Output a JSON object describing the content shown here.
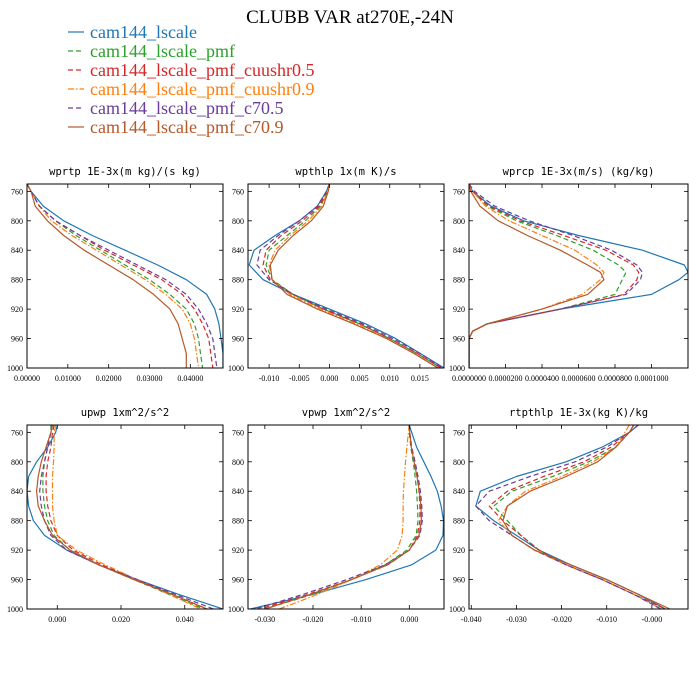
{
  "figure": {
    "title": "CLUBB VAR at270E,-24N"
  },
  "legend": [
    {
      "label": "cam144_lscale",
      "color": "#1f77b4",
      "dash": "solid"
    },
    {
      "label": "cam144_lscale_pmf",
      "color": "#2ca02c",
      "dash": "dash"
    },
    {
      "label": "cam144_lscale_pmf_cuushr0.5",
      "color": "#d62728",
      "dash": "dash"
    },
    {
      "label": "cam144_lscale_pmf_cuushr0.9",
      "color": "#ff7f0e",
      "dash": "dashdot"
    },
    {
      "label": "cam144_lscale_pmf_c70.5",
      "color": "#6a3d9a",
      "dash": "dash"
    },
    {
      "label": "cam144_lscale_pmf_c70.9",
      "color": "#b5582a",
      "dash": "solid"
    }
  ],
  "chart_data": [
    {
      "type": "line",
      "title": "wprtp  1E-3x(m kg)/(s kg)",
      "xlim": [
        0.0,
        0.048
      ],
      "ylim": [
        1000,
        750
      ],
      "xticks": [
        0.0,
        0.01,
        0.02,
        0.03,
        0.04
      ],
      "xtick_labels": [
        "0.00000",
        "0.01000",
        "0.02000",
        "0.03000",
        "0.04000"
      ],
      "yticks": [
        760,
        800,
        840,
        880,
        920,
        960,
        1000
      ],
      "y": [
        750,
        760,
        780,
        800,
        820,
        840,
        860,
        880,
        900,
        920,
        940,
        960,
        980,
        1000
      ],
      "series": [
        {
          "name": "cam144_lscale",
          "values": [
            0.0,
            0.001,
            0.004,
            0.009,
            0.016,
            0.024,
            0.032,
            0.039,
            0.044,
            0.046,
            0.047,
            0.0475,
            0.048,
            0.048
          ]
        },
        {
          "name": "cam144_lscale_pmf",
          "values": [
            0.0,
            0.001,
            0.003,
            0.007,
            0.012,
            0.018,
            0.024,
            0.03,
            0.035,
            0.039,
            0.041,
            0.042,
            0.0425,
            0.043
          ]
        },
        {
          "name": "cam144_lscale_pmf_cuushr0.5",
          "values": [
            0.0,
            0.001,
            0.003,
            0.007,
            0.013,
            0.019,
            0.026,
            0.033,
            0.038,
            0.041,
            0.043,
            0.0445,
            0.045,
            0.0455
          ]
        },
        {
          "name": "cam144_lscale_pmf_cuushr0.9",
          "values": [
            0.0,
            0.001,
            0.003,
            0.006,
            0.011,
            0.017,
            0.023,
            0.029,
            0.034,
            0.038,
            0.04,
            0.041,
            0.0415,
            0.042
          ]
        },
        {
          "name": "cam144_lscale_pmf_c70.5",
          "values": [
            0.0,
            0.001,
            0.003,
            0.007,
            0.013,
            0.02,
            0.027,
            0.034,
            0.039,
            0.042,
            0.044,
            0.0455,
            0.046,
            0.0465
          ]
        },
        {
          "name": "cam144_lscale_pmf_c70.9",
          "values": [
            0.0,
            0.001,
            0.002,
            0.005,
            0.009,
            0.014,
            0.02,
            0.026,
            0.031,
            0.035,
            0.037,
            0.038,
            0.039,
            0.039
          ]
        }
      ]
    },
    {
      "type": "line",
      "title": "wpthlp  1x(m K)/s",
      "xlim": [
        -0.0135,
        0.019
      ],
      "ylim": [
        1000,
        750
      ],
      "xticks": [
        -0.01,
        -0.005,
        0.0,
        0.005,
        0.01,
        0.015
      ],
      "xtick_labels": [
        "-0.010",
        "-0.005",
        "0.000",
        "0.005",
        "0.010",
        "0.015"
      ],
      "yticks": [
        760,
        800,
        840,
        880,
        920,
        960,
        1000
      ],
      "y": [
        750,
        760,
        780,
        800,
        820,
        840,
        860,
        880,
        900,
        920,
        940,
        960,
        980,
        1000
      ],
      "series": [
        {
          "name": "cam144_lscale",
          "values": [
            0.0,
            -0.0005,
            -0.002,
            -0.005,
            -0.009,
            -0.0125,
            -0.0133,
            -0.011,
            -0.006,
            0.0,
            0.006,
            0.011,
            0.015,
            0.019
          ]
        },
        {
          "name": "cam144_lscale_pmf",
          "values": [
            0.0,
            -0.0003,
            -0.0015,
            -0.004,
            -0.007,
            -0.01,
            -0.0105,
            -0.0095,
            -0.006,
            -0.001,
            0.005,
            0.01,
            0.0145,
            0.0185
          ]
        },
        {
          "name": "cam144_lscale_pmf_cuushr0.5",
          "values": [
            0.0,
            -0.0004,
            -0.0017,
            -0.0045,
            -0.008,
            -0.0105,
            -0.011,
            -0.0098,
            -0.006,
            -0.001,
            0.005,
            0.01,
            0.0145,
            0.0185
          ]
        },
        {
          "name": "cam144_lscale_pmf_cuushr0.9",
          "values": [
            0.0,
            -0.0003,
            -0.0013,
            -0.0035,
            -0.0065,
            -0.009,
            -0.01,
            -0.0095,
            -0.0065,
            -0.0015,
            0.0045,
            0.0095,
            0.014,
            0.018
          ]
        },
        {
          "name": "cam144_lscale_pmf_c70.5",
          "values": [
            0.0,
            -0.0005,
            -0.002,
            -0.005,
            -0.0085,
            -0.0115,
            -0.012,
            -0.01,
            -0.006,
            -0.0005,
            0.0055,
            0.0105,
            0.015,
            0.0188
          ]
        },
        {
          "name": "cam144_lscale_pmf_c70.9",
          "values": [
            0.0,
            -0.0002,
            -0.001,
            -0.003,
            -0.006,
            -0.0085,
            -0.0098,
            -0.0095,
            -0.007,
            -0.002,
            0.004,
            0.0095,
            0.014,
            0.018
          ]
        }
      ]
    },
    {
      "type": "line",
      "title": "wprcp  1E-3x(m/s) (kg/kg)",
      "xlim": [
        0.0,
        0.00012
      ],
      "ylim": [
        1000,
        750
      ],
      "xticks": [
        0.0,
        2e-05,
        4e-05,
        6e-05,
        8e-05,
        0.0001
      ],
      "xtick_labels": [
        "0.0000000",
        "0.0000200",
        "0.0000400",
        "0.0000600",
        "0.0000800",
        "0.0001000"
      ],
      "yticks": [
        760,
        800,
        840,
        880,
        920,
        960,
        1000
      ],
      "y": [
        750,
        760,
        780,
        800,
        820,
        840,
        860,
        870,
        880,
        900,
        920,
        940,
        950,
        960,
        1000
      ],
      "series": [
        {
          "name": "cam144_lscale",
          "values": [
            0.0,
            2e-06,
            1.2e-05,
            3e-05,
            6e-05,
            9.5e-05,
            0.000118,
            0.00012,
            0.000115,
            0.0001,
            5e-05,
            1e-05,
            2e-06,
            0.0,
            0.0
          ]
        },
        {
          "name": "cam144_lscale_pmf",
          "values": [
            0.0,
            2e-06,
            1e-05,
            2.6e-05,
            4.8e-05,
            6.8e-05,
            8.2e-05,
            8.6e-05,
            8.4e-05,
            8e-05,
            5e-05,
            1e-05,
            2e-06,
            0.0,
            0.0
          ]
        },
        {
          "name": "cam144_lscale_pmf_cuushr0.5",
          "values": [
            0.0,
            2e-06,
            1.1e-05,
            2.8e-05,
            5.2e-05,
            7.5e-05,
            9e-05,
            9.3e-05,
            9.2e-05,
            8.5e-05,
            5e-05,
            1e-05,
            2e-06,
            0.0,
            0.0
          ]
        },
        {
          "name": "cam144_lscale_pmf_cuushr0.9",
          "values": [
            0.0,
            2e-06,
            9e-06,
            2.2e-05,
            4e-05,
            5.8e-05,
            7e-05,
            7.4e-05,
            7.2e-05,
            6.2e-05,
            4e-05,
            1e-05,
            2e-06,
            0.0,
            0.0
          ]
        },
        {
          "name": "cam144_lscale_pmf_c70.5",
          "values": [
            0.0,
            3e-06,
            1.4e-05,
            3.3e-05,
            5.7e-05,
            7.8e-05,
            9.2e-05,
            9.5e-05,
            9.4e-05,
            8.6e-05,
            5e-05,
            1e-05,
            2e-06,
            0.0,
            0.0
          ]
        },
        {
          "name": "cam144_lscale_pmf_c70.9",
          "values": [
            0.0,
            1e-06,
            6e-06,
            1.6e-05,
            3.2e-05,
            5e-05,
            6.5e-05,
            7.2e-05,
            7.4e-05,
            6.5e-05,
            4e-05,
            1e-05,
            2e-06,
            0.0,
            0.0
          ]
        }
      ]
    },
    {
      "type": "line",
      "title": "upwp  1xm^2/s^2",
      "xlim": [
        -0.0095,
        0.052
      ],
      "ylim": [
        1000,
        750
      ],
      "xticks": [
        0.0,
        0.02,
        0.04
      ],
      "xtick_labels": [
        "0.000",
        "0.020",
        "0.040"
      ],
      "yticks": [
        760,
        800,
        840,
        880,
        920,
        960,
        1000
      ],
      "y": [
        750,
        760,
        780,
        800,
        820,
        840,
        860,
        880,
        900,
        920,
        940,
        960,
        980,
        1000
      ],
      "series": [
        {
          "name": "cam144_lscale",
          "values": [
            0.0,
            -0.0005,
            -0.003,
            -0.0065,
            -0.009,
            -0.0095,
            -0.009,
            -0.0075,
            -0.004,
            0.003,
            0.013,
            0.025,
            0.038,
            0.052
          ]
        },
        {
          "name": "cam144_lscale_pmf",
          "values": [
            -0.002,
            -0.002,
            -0.003,
            -0.004,
            -0.0045,
            -0.0045,
            -0.004,
            -0.003,
            -0.001,
            0.004,
            0.013,
            0.024,
            0.035,
            0.046
          ]
        },
        {
          "name": "cam144_lscale_pmf_cuushr0.5",
          "values": [
            -0.001,
            -0.0015,
            -0.002,
            -0.003,
            -0.0035,
            -0.0035,
            -0.003,
            -0.002,
            0.0,
            0.005,
            0.014,
            0.025,
            0.036,
            0.047
          ]
        },
        {
          "name": "cam144_lscale_pmf_cuushr0.9",
          "values": [
            -0.0005,
            -0.001,
            -0.001,
            -0.0012,
            -0.0015,
            -0.0015,
            -0.0015,
            -0.001,
            0.0,
            0.006,
            0.015,
            0.025,
            0.035,
            0.045
          ]
        },
        {
          "name": "cam144_lscale_pmf_c70.5",
          "values": [
            -0.0015,
            -0.002,
            -0.003,
            -0.004,
            -0.005,
            -0.0055,
            -0.005,
            -0.004,
            -0.002,
            0.003,
            0.013,
            0.025,
            0.037,
            0.049
          ]
        },
        {
          "name": "cam144_lscale_pmf_c70.9",
          "values": [
            -0.0015,
            -0.002,
            -0.0035,
            -0.005,
            -0.006,
            -0.0065,
            -0.006,
            -0.004,
            -0.0015,
            0.004,
            0.013,
            0.024,
            0.036,
            0.047
          ]
        }
      ]
    },
    {
      "type": "line",
      "title": "vpwp  1xm^2/s^2",
      "xlim": [
        -0.0335,
        0.0072
      ],
      "ylim": [
        1000,
        750
      ],
      "xticks": [
        -0.03,
        -0.02,
        -0.01,
        0.0
      ],
      "xtick_labels": [
        "-0.030",
        "-0.020",
        "-0.010",
        "0.000"
      ],
      "yticks": [
        760,
        800,
        840,
        880,
        920,
        960,
        1000
      ],
      "y": [
        750,
        760,
        780,
        800,
        820,
        840,
        860,
        880,
        900,
        920,
        940,
        960,
        980,
        1000
      ],
      "series": [
        {
          "name": "cam144_lscale",
          "values": [
            0.0,
            0.0005,
            0.0015,
            0.003,
            0.0045,
            0.0058,
            0.0066,
            0.0071,
            0.007,
            0.0055,
            0.0005,
            -0.009,
            -0.02,
            -0.033
          ]
        },
        {
          "name": "cam144_lscale_pmf",
          "values": [
            0.0,
            0.0,
            0.0003,
            0.0008,
            0.0012,
            0.0015,
            0.0017,
            0.0018,
            0.0014,
            -0.0005,
            -0.005,
            -0.012,
            -0.02,
            -0.03
          ]
        },
        {
          "name": "cam144_lscale_pmf_cuushr0.5",
          "values": [
            0.0,
            0.0,
            0.0004,
            0.001,
            0.0016,
            0.002,
            0.0022,
            0.0022,
            0.0017,
            0.0,
            -0.0045,
            -0.012,
            -0.021,
            -0.031
          ]
        },
        {
          "name": "cam144_lscale_pmf_cuushr0.9",
          "values": [
            0.0,
            -0.0002,
            -0.0005,
            -0.0008,
            -0.001,
            -0.0012,
            -0.0013,
            -0.0013,
            -0.0015,
            -0.0025,
            -0.006,
            -0.012,
            -0.019,
            -0.027
          ]
        },
        {
          "name": "cam144_lscale_pmf_c70.5",
          "values": [
            0.0,
            0.0001,
            0.0005,
            0.0012,
            0.0018,
            0.0023,
            0.0026,
            0.0027,
            0.0022,
            0.0,
            -0.005,
            -0.013,
            -0.022,
            -0.032
          ]
        },
        {
          "name": "cam144_lscale_pmf_c70.9",
          "values": [
            0.0,
            0.0001,
            0.0004,
            0.001,
            0.0016,
            0.0021,
            0.0024,
            0.0025,
            0.002,
            0.0,
            -0.0045,
            -0.012,
            -0.0205,
            -0.03
          ]
        }
      ]
    },
    {
      "type": "line",
      "title": "rtpthlp  1E-3x(kg K)/kg",
      "xlim": [
        -0.0405,
        0.008
      ],
      "ylim": [
        1000,
        750
      ],
      "xticks": [
        -0.04,
        -0.03,
        -0.02,
        -0.01,
        0.0
      ],
      "xtick_labels": [
        "-0.040",
        "-0.030",
        "-0.020",
        "-0.010",
        "-0.000"
      ],
      "yticks": [
        760,
        800,
        840,
        880,
        920,
        960,
        1000
      ],
      "y": [
        750,
        760,
        780,
        800,
        820,
        840,
        860,
        880,
        900,
        920,
        940,
        960,
        980,
        1000
      ],
      "series": [
        {
          "name": "cam144_lscale",
          "values": [
            -0.003,
            -0.005,
            -0.011,
            -0.019,
            -0.03,
            -0.038,
            -0.039,
            -0.035,
            -0.03,
            -0.025,
            -0.018,
            -0.01,
            -0.003,
            0.003
          ]
        },
        {
          "name": "cam144_lscale_pmf",
          "values": [
            -0.004,
            -0.005,
            -0.008,
            -0.014,
            -0.022,
            -0.031,
            -0.035,
            -0.032,
            -0.029,
            -0.025,
            -0.019,
            -0.011,
            -0.004,
            0.003
          ]
        },
        {
          "name": "cam144_lscale_pmf_cuushr0.5",
          "values": [
            -0.004,
            -0.005,
            -0.009,
            -0.015,
            -0.024,
            -0.032,
            -0.036,
            -0.033,
            -0.029,
            -0.025,
            -0.019,
            -0.011,
            -0.004,
            0.003
          ]
        },
        {
          "name": "cam144_lscale_pmf_cuushr0.9",
          "values": [
            -0.005,
            -0.006,
            -0.008,
            -0.013,
            -0.02,
            -0.028,
            -0.032,
            -0.034,
            -0.031,
            -0.026,
            -0.019,
            -0.011,
            -0.004,
            0.002
          ]
        },
        {
          "name": "cam144_lscale_pmf_c70.5",
          "values": [
            -0.003,
            -0.005,
            -0.01,
            -0.017,
            -0.027,
            -0.036,
            -0.039,
            -0.036,
            -0.031,
            -0.026,
            -0.019,
            -0.011,
            -0.004,
            0.002
          ]
        },
        {
          "name": "cam144_lscale_pmf_c70.9",
          "values": [
            -0.004,
            -0.005,
            -0.008,
            -0.012,
            -0.019,
            -0.027,
            -0.032,
            -0.033,
            -0.031,
            -0.026,
            -0.018,
            -0.01,
            -0.003,
            0.004
          ]
        }
      ]
    }
  ]
}
